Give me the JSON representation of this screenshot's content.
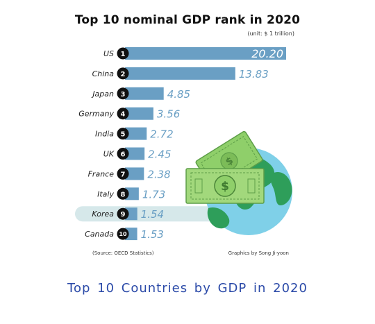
{
  "title": "Top 10 nominal GDP rank in 2020",
  "unit_note": "(unit: $ 1 trillion)",
  "source": "(Source: OECD Statistics)",
  "credit": "Graphics by Song Ji-yoon",
  "caption": "Top 10 Countries by GDP in 2020",
  "colors": {
    "bar": "#6a9fc4",
    "value_text": "#6a9fc4",
    "highlight_band": "#d6e8ea",
    "badge": "#111111",
    "caption": "#2b4aa8",
    "money": "#8fcf6a",
    "globe_ocean": "#7fd0e8",
    "globe_land": "#2e9e5a"
  },
  "illustration": {
    "icon": "globe-with-dollar-bills-icon"
  },
  "chart_data": {
    "type": "bar",
    "orientation": "horizontal",
    "title": "Top 10 nominal GDP rank in 2020",
    "unit": "(unit: $ 1 trillion)",
    "highlight": "Korea",
    "xlim": [
      0,
      20.2
    ],
    "categories": [
      "US",
      "China",
      "Japan",
      "Germany",
      "India",
      "UK",
      "France",
      "Italy",
      "Korea",
      "Canada"
    ],
    "ranks": [
      "1",
      "2",
      "3",
      "4",
      "5",
      "6",
      "7",
      "8",
      "9",
      "10"
    ],
    "values": [
      20.2,
      13.83,
      4.85,
      3.56,
      2.72,
      2.45,
      2.38,
      1.73,
      1.54,
      1.53
    ],
    "labels": [
      "20.20",
      "13.83",
      "4.85",
      "3.56",
      "2.72",
      "2.45",
      "2.38",
      "1.73",
      "1.54",
      "1.53"
    ]
  }
}
